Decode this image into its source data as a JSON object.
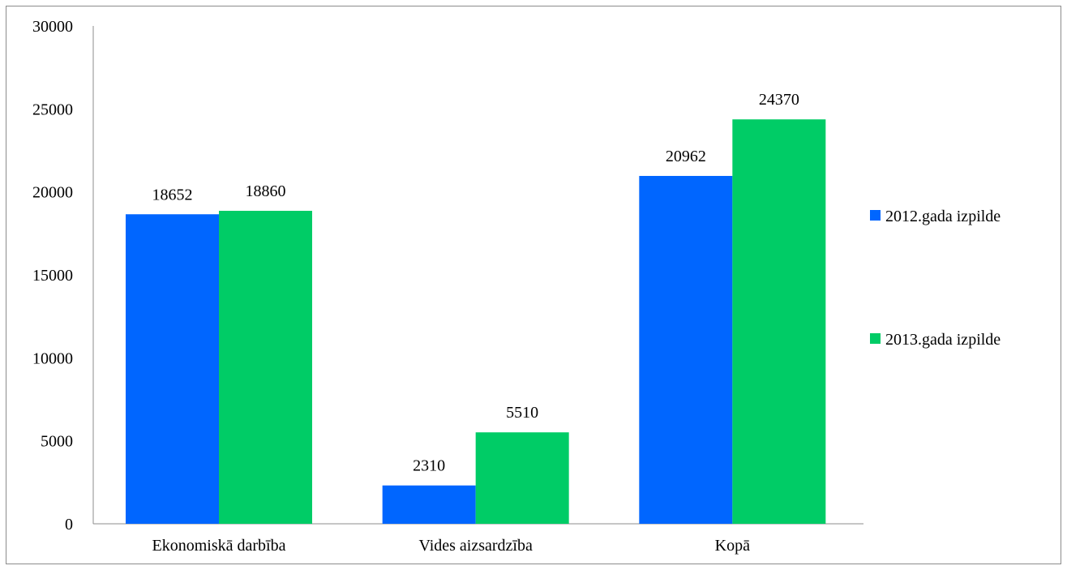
{
  "chart_data": {
    "type": "bar",
    "title": "",
    "xlabel": "",
    "ylabel": "",
    "categories": [
      "Ekonomiskā darbība",
      "Vides aizsardzība",
      "Kopā"
    ],
    "series": [
      {
        "name": "2012.gada izpilde",
        "values": [
          18652,
          2310,
          20962
        ],
        "color": "#0066ff"
      },
      {
        "name": "2013.gada izpilde",
        "values": [
          18860,
          5510,
          24370
        ],
        "color": "#00cc66"
      }
    ],
    "ylim": [
      0,
      30000
    ],
    "yticks": [
      0,
      5000,
      10000,
      15000,
      20000,
      25000,
      30000
    ],
    "grid": false,
    "data_labels": true,
    "legend_position": "right"
  }
}
